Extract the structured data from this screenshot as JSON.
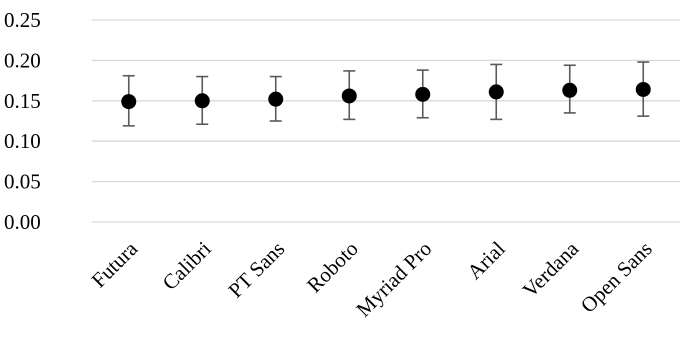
{
  "chart_data": {
    "type": "scatter",
    "title": "",
    "xlabel": "",
    "ylabel": "",
    "categories": [
      "Futura",
      "Calibri",
      "PT Sans",
      "Roboto",
      "Myriad Pro",
      "Arial",
      "Verdana",
      "Open Sans"
    ],
    "series": [
      {
        "values": [
          0.149,
          0.15,
          0.152,
          0.156,
          0.158,
          0.161,
          0.163,
          0.164
        ],
        "error_low": [
          0.119,
          0.121,
          0.125,
          0.127,
          0.129,
          0.127,
          0.135,
          0.131
        ],
        "error_high": [
          0.181,
          0.18,
          0.18,
          0.187,
          0.188,
          0.195,
          0.194,
          0.198
        ]
      }
    ],
    "ylim": [
      0,
      0.25
    ],
    "yticks": [
      "0.00",
      "0.05",
      "0.10",
      "0.15",
      "0.20",
      "0.25"
    ],
    "grid": true,
    "legend": "none",
    "colors": {
      "point": "#000000",
      "error_bar": "#5a5a5a",
      "grid": "#d9d9d9"
    }
  }
}
